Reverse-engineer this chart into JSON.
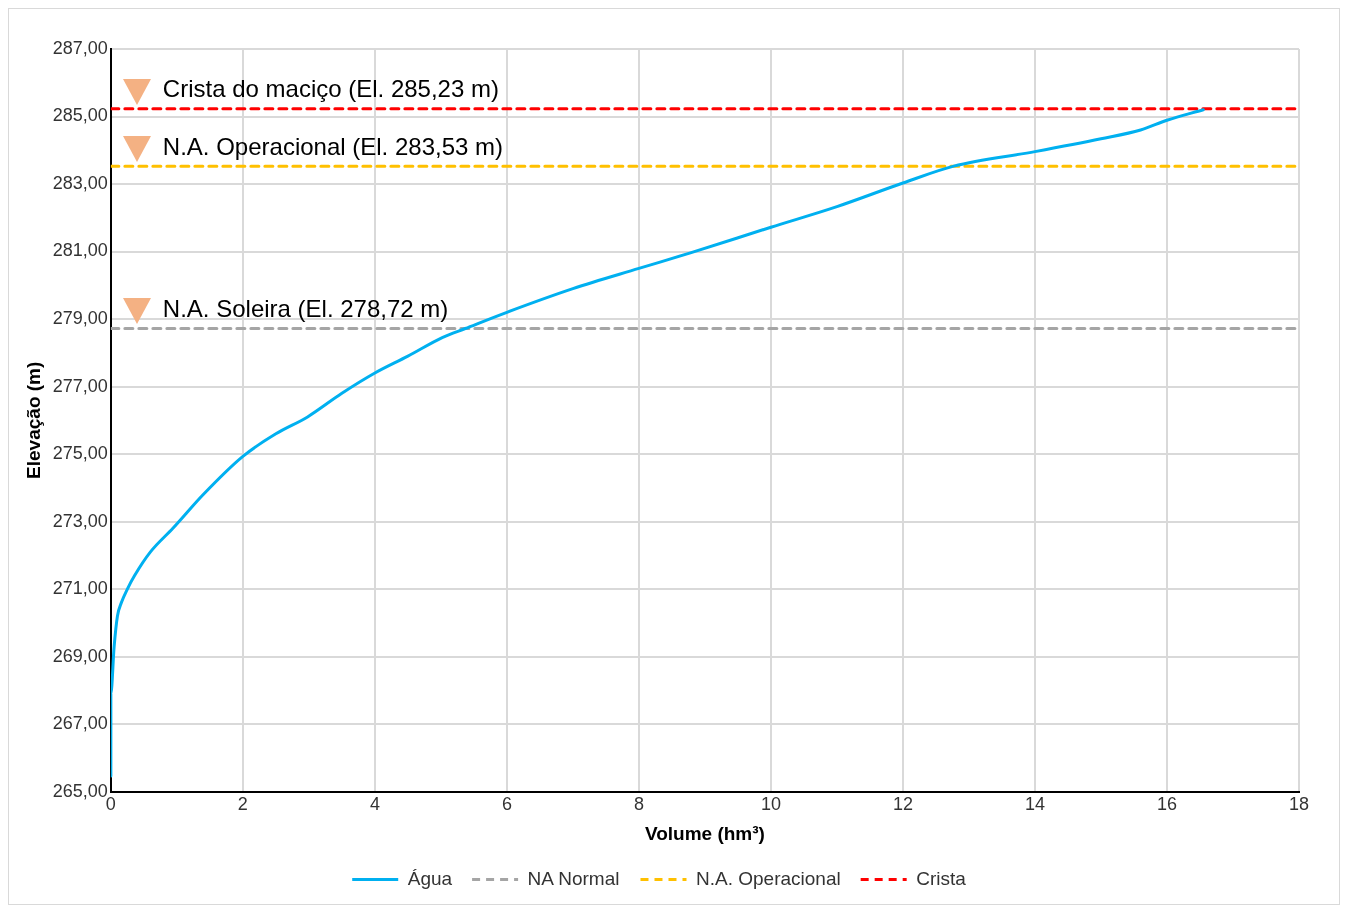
{
  "chart_data": {
    "type": "line",
    "xlabel": "Volume (hm³)",
    "ylabel": "Elevação (m)",
    "xlim": [
      0,
      18
    ],
    "xticks": [
      0,
      2,
      4,
      6,
      8,
      10,
      12,
      14,
      16,
      18
    ],
    "ylim": [
      265,
      287
    ],
    "yticks": [
      {
        "value": 265,
        "label": "265,00"
      },
      {
        "value": 267,
        "label": "267,00"
      },
      {
        "value": 269,
        "label": "269,00"
      },
      {
        "value": 271,
        "label": "271,00"
      },
      {
        "value": 273,
        "label": "273,00"
      },
      {
        "value": 275,
        "label": "275,00"
      },
      {
        "value": 277,
        "label": "277,00"
      },
      {
        "value": 279,
        "label": "279,00"
      },
      {
        "value": 281,
        "label": "281,00"
      },
      {
        "value": 283,
        "label": "283,00"
      },
      {
        "value": 285,
        "label": "285,00"
      },
      {
        "value": 287,
        "label": "287,00"
      }
    ],
    "grid": true,
    "legend": "bottom",
    "marker": "none",
    "series": [
      {
        "name": "Água",
        "color": "#00b0f0",
        "line_style": "solid",
        "x": [
          0,
          0,
          0.05,
          0.1,
          0.16,
          0.25,
          0.36,
          0.6,
          0.94,
          1.4,
          2,
          2.5,
          2.98,
          3.5,
          4,
          4.5,
          5.02,
          5.37,
          6,
          7,
          8,
          8.78,
          10,
          11,
          12,
          12.77,
          14,
          15,
          15.6,
          16,
          16.55
        ],
        "values": [
          265.46,
          267.9,
          269.3,
          270.2,
          270.6,
          271.0,
          271.4,
          272.1,
          272.8,
          273.8,
          274.93,
          275.6,
          276.1,
          276.8,
          277.4,
          277.9,
          278.45,
          278.72,
          279.2,
          279.9,
          280.5,
          280.96,
          281.72,
          282.33,
          283.03,
          283.53,
          283.96,
          284.34,
          284.6,
          284.89,
          285.2
        ]
      },
      {
        "name": "NA Normal",
        "color": "#a5a5a5",
        "line_style": "dashed",
        "x": [
          0,
          18
        ],
        "values": [
          278.72,
          278.72
        ]
      },
      {
        "name": "N.A. Operacional",
        "color": "#ffc000",
        "line_style": "dashed",
        "x": [
          0,
          18
        ],
        "values": [
          283.53,
          283.53
        ]
      },
      {
        "name": "Crista",
        "color": "#ff0000",
        "line_style": "dashed",
        "x": [
          0,
          18
        ],
        "values": [
          285.23,
          285.23
        ]
      }
    ],
    "annotations": [
      {
        "text": "Crista do maciço (El. 285,23 m)",
        "y": 285.23
      },
      {
        "text": "N.A. Operacional (El. 283,53 m)",
        "y": 283.53
      },
      {
        "text": "N.A. Soleira (El. 278,72 m)",
        "y": 278.72
      }
    ]
  }
}
